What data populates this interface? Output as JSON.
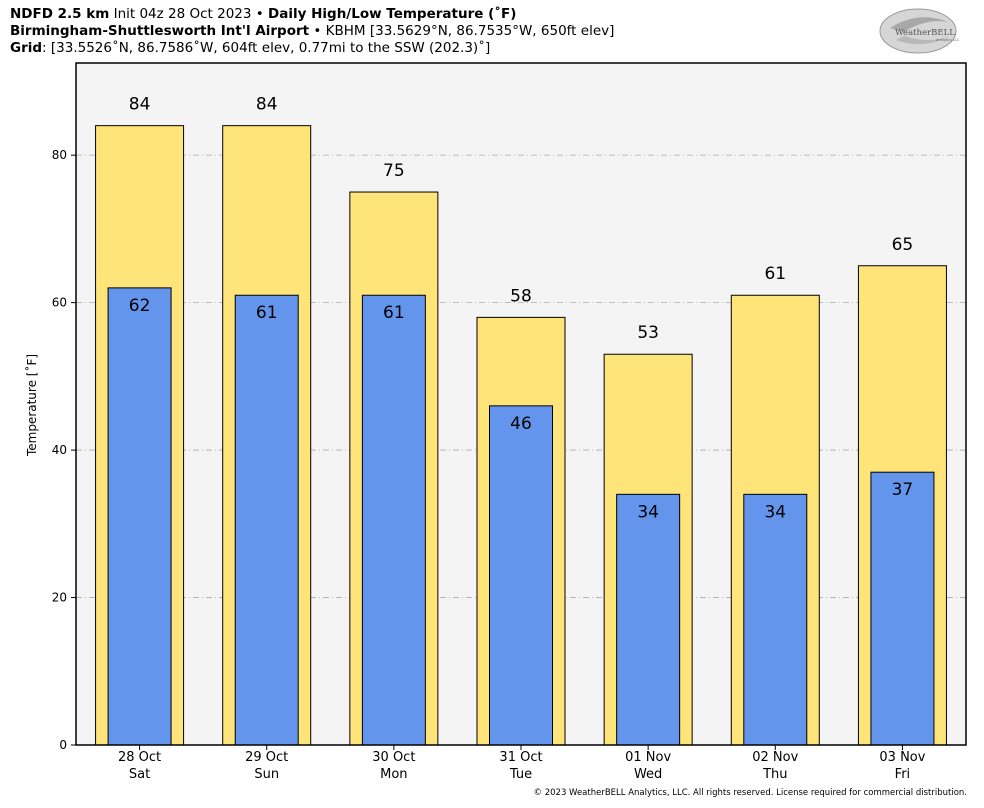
{
  "header": {
    "line1": {
      "bold1": "NDFD 2.5 km",
      "text1": " Init 04z 28 Oct 2023 • ",
      "bold2": "Daily High/Low Temperature (˚F)"
    },
    "line2": {
      "bold1": "Birmingham-Shuttlesworth Int'l Airport",
      "text1": " • KBHM [33.5629°N, 86.7535°W, 650ft elev]"
    },
    "line3": {
      "bold1": "Grid",
      "text1": ": [33.5526˚N, 86.7586˚W, 604ft elev, 0.77mi to the SSW (202.3)˚]"
    }
  },
  "logo": {
    "text": "WeatherBELL",
    "subtext": "Analytics LLC",
    "icon": "weatherbell-swirl-logo"
  },
  "copyright": "© 2023 WeatherBELL Analytics, LLC. All rights reserved. License required for commercial distribution.",
  "colors": {
    "high": "#ffe47a",
    "low": "#6495ed",
    "plot_bg": "#f4f4f4",
    "grid": "#aaaaaa"
  },
  "chart_data": {
    "type": "bar",
    "categories": [
      "28 Oct\nSat",
      "29 Oct\nSun",
      "30 Oct\nMon",
      "31 Oct\nTue",
      "01 Nov\nWed",
      "02 Nov\nThu",
      "03 Nov\nFri"
    ],
    "series": [
      {
        "values": [
          84,
          84,
          75,
          58,
          53,
          61,
          65
        ],
        "color": "#ffe47a"
      },
      {
        "values": [
          62,
          61,
          61,
          46,
          34,
          34,
          37
        ],
        "color": "#6495ed"
      }
    ],
    "ylabel": "Temperature [˚F]",
    "ylim": [
      0,
      92.5
    ],
    "yticks": [
      0,
      20,
      40,
      60,
      80
    ],
    "grid": true,
    "legend": "none"
  }
}
